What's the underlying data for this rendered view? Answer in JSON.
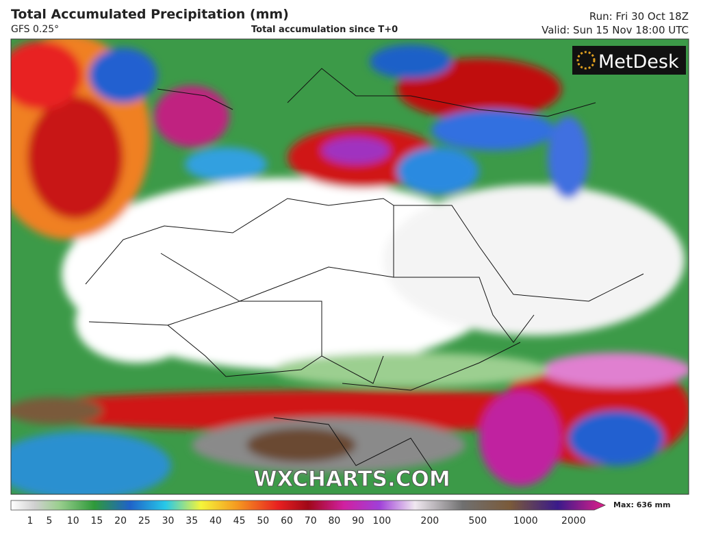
{
  "header": {
    "title": "Total Accumulated Precipitation (mm)",
    "model": "GFS 0.25°",
    "subtitle": "Total accumulation since T+0",
    "run": "Run: Fri 30 Oct 18Z",
    "valid": "Valid: Sun 15 Nov 18:00 UTC"
  },
  "logo": "MetDesk",
  "watermark": "WXCHARTS.COM",
  "colorbar": {
    "ticks": [
      1,
      5,
      10,
      15,
      20,
      25,
      30,
      35,
      40,
      45,
      50,
      60,
      70,
      80,
      90,
      100,
      200,
      500,
      1000,
      2000
    ],
    "max_label": "Max: 636 mm"
  }
}
